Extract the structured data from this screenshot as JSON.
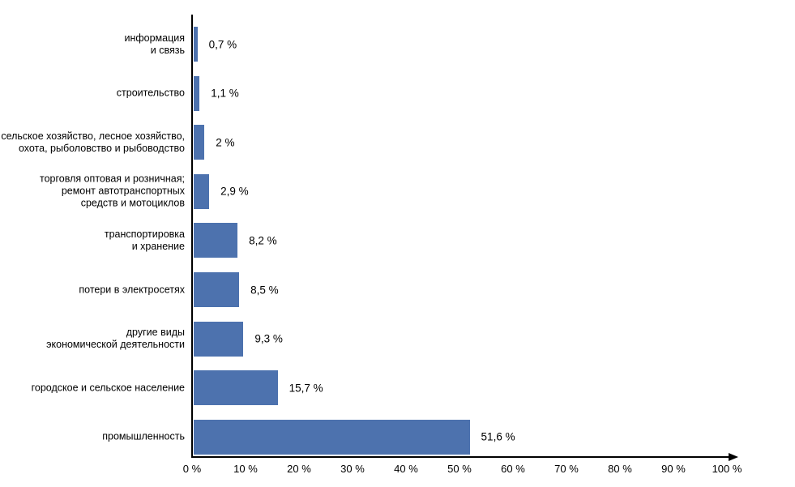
{
  "chart_data": {
    "type": "bar",
    "orientation": "horizontal",
    "title": "",
    "xlabel": "",
    "ylabel": "",
    "grid": false,
    "legend": false,
    "xlim": [
      0,
      100
    ],
    "bar_color": "#4D72AE",
    "axis_color": "#000000",
    "categories": [
      "информация\nи связь",
      "строительство",
      "сельское хозяйство, лесное хозяйство,\nохота, рыболовство и рыбоводство",
      "торговля оптовая и розничная;\nремонт автотранспортных\nсредств и мотоциклов",
      "транспортировка\nи хранение",
      "потери в электросетях",
      "другие виды\nэкономической деятельности",
      "городское и сельское население",
      "промышленность"
    ],
    "values": [
      0.7,
      1.1,
      2,
      2.9,
      8.2,
      8.5,
      9.3,
      15.7,
      51.6
    ],
    "value_labels": [
      "0,7 %",
      "1,1 %",
      "2 %",
      "2,9 %",
      "8,2 %",
      "8,5 %",
      "9,3 %",
      "15,7 %",
      "51,6 %"
    ],
    "x_ticks": [
      {
        "value": 0,
        "label": "0 %"
      },
      {
        "value": 10,
        "label": "10 %"
      },
      {
        "value": 20,
        "label": "20 %"
      },
      {
        "value": 30,
        "label": "30 %"
      },
      {
        "value": 40,
        "label": "40 %"
      },
      {
        "value": 50,
        "label": "50 %"
      },
      {
        "value": 60,
        "label": "60 %"
      },
      {
        "value": 70,
        "label": "70 %"
      },
      {
        "value": 80,
        "label": "80 %"
      },
      {
        "value": 90,
        "label": "90 %"
      },
      {
        "value": 100,
        "label": "100 %"
      }
    ]
  }
}
